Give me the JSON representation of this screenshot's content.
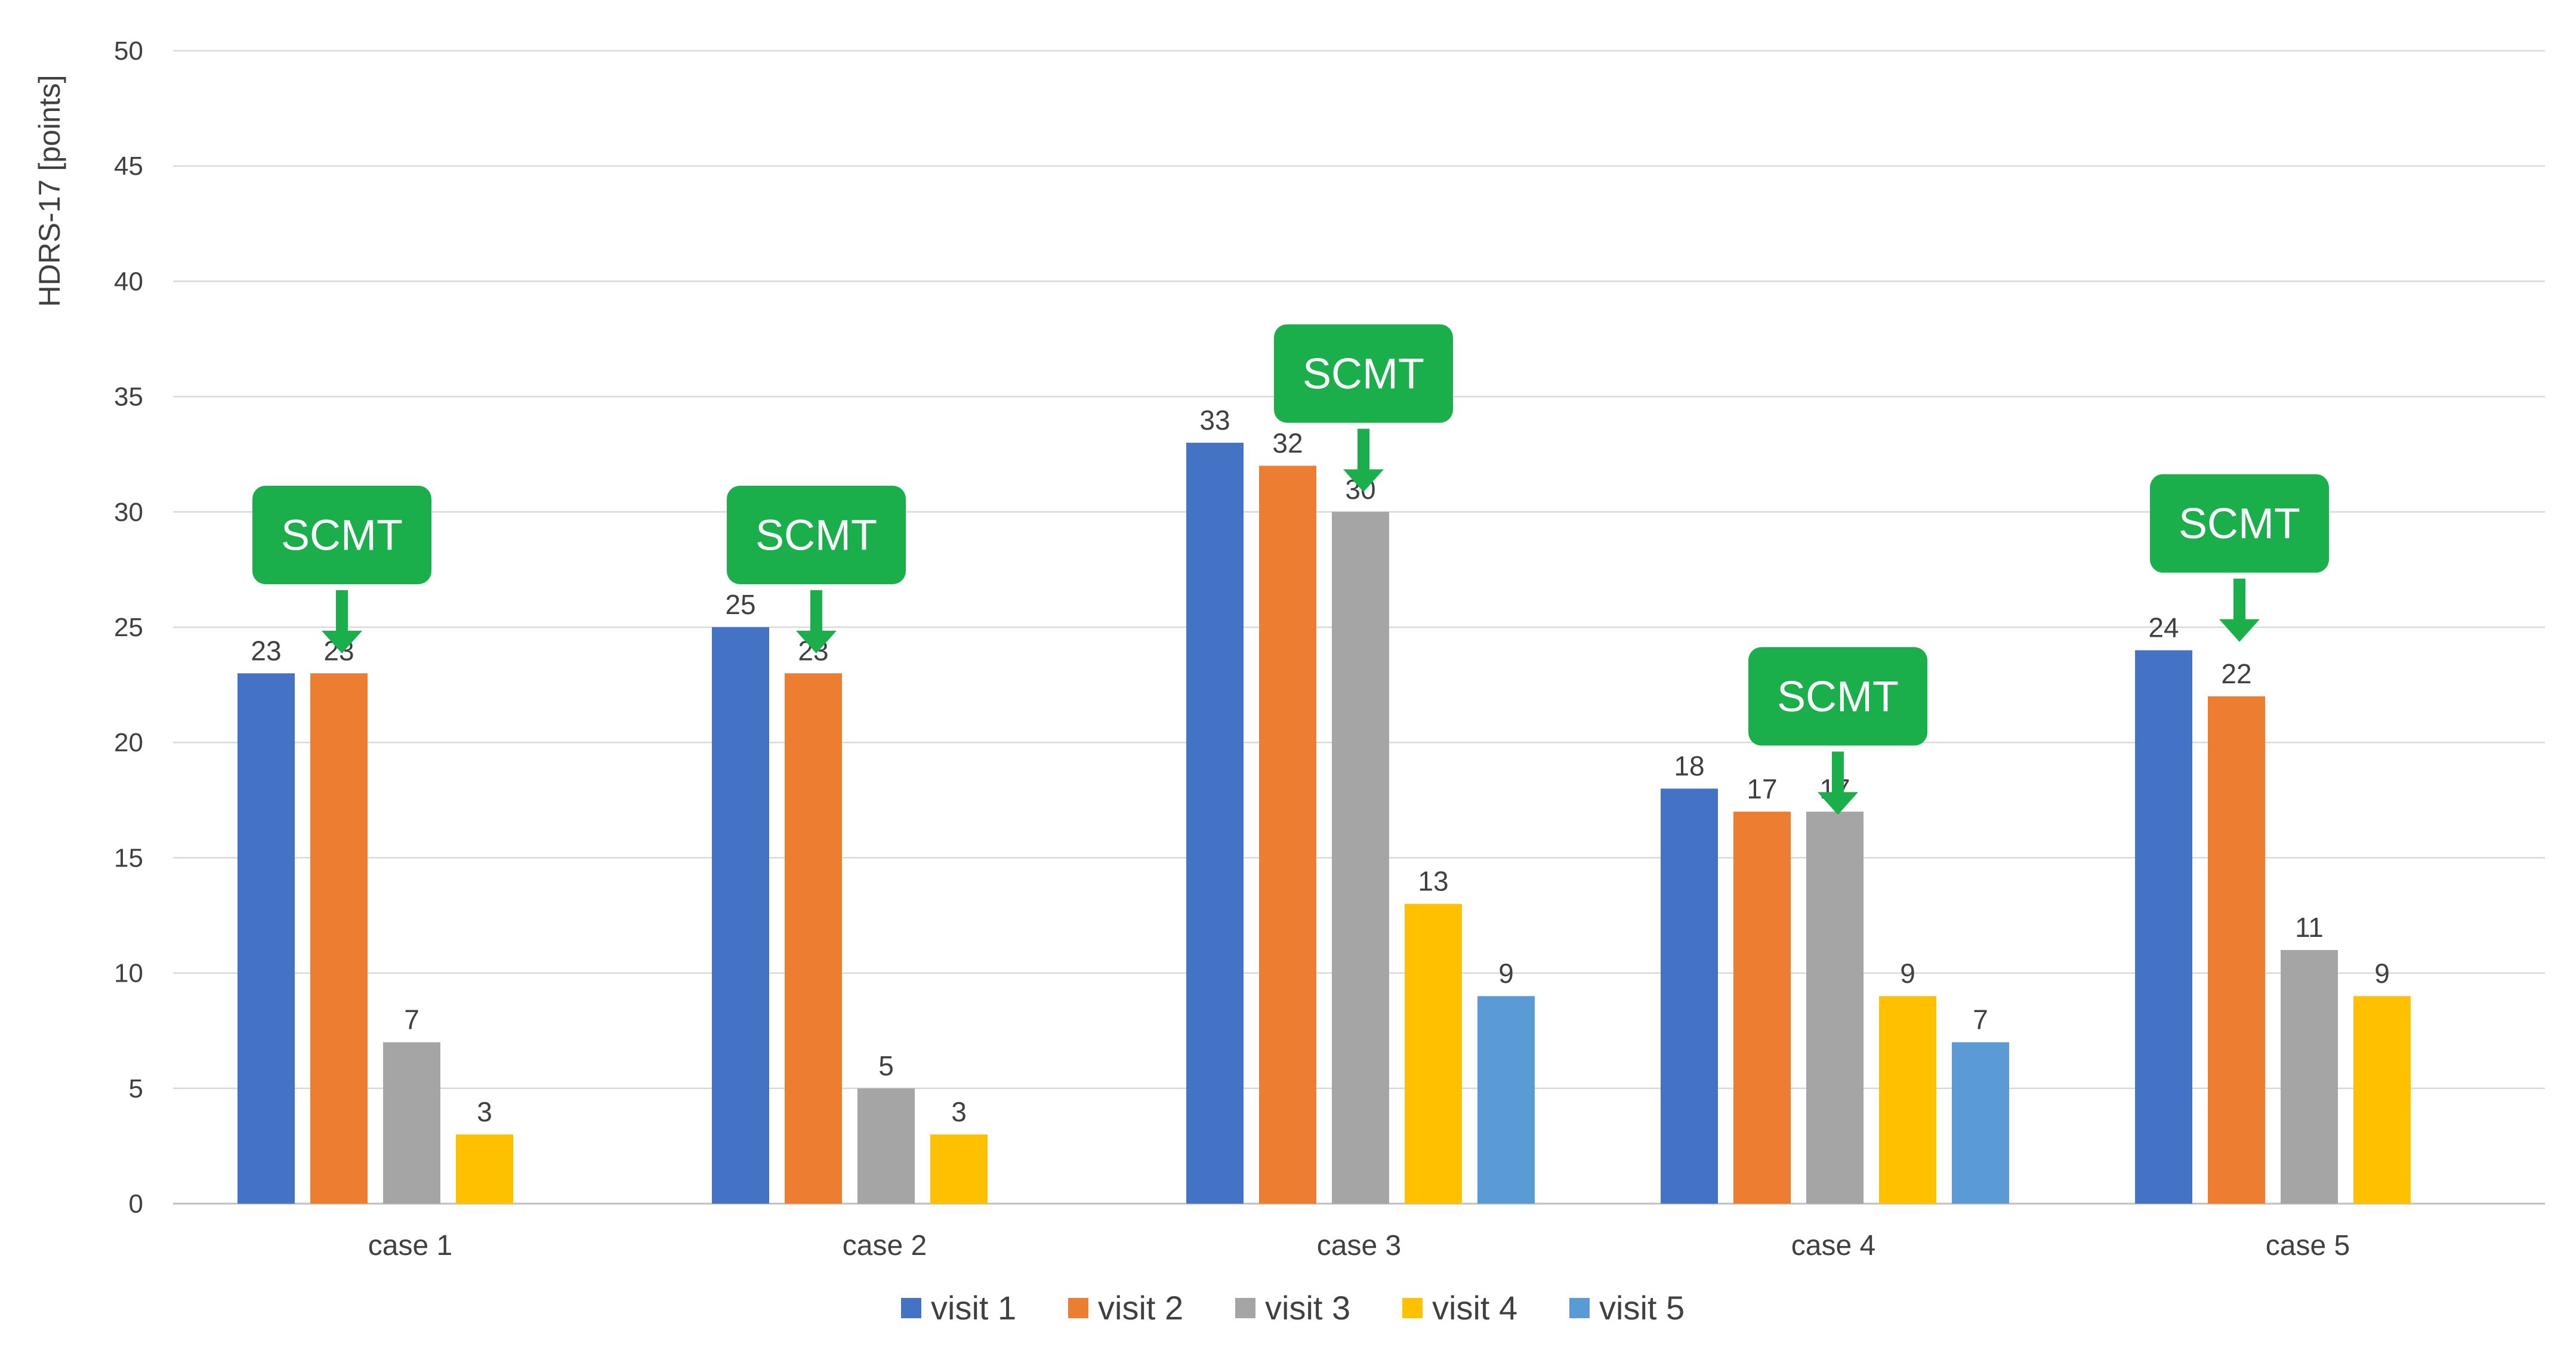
{
  "chart_data": {
    "type": "bar",
    "title": "",
    "xlabel": "",
    "ylabel": "HDRS-17 [points]",
    "ylim": [
      0,
      50
    ],
    "yticks": [
      0,
      5,
      10,
      15,
      20,
      25,
      30,
      35,
      40,
      45,
      50
    ],
    "grid": true,
    "legend_position": "bottom",
    "categories": [
      "case 1",
      "case 2",
      "case 3",
      "case 4",
      "case 5"
    ],
    "series": [
      {
        "name": "visit 1",
        "color": "#4472C4",
        "values": [
          23,
          25,
          33,
          18,
          24
        ]
      },
      {
        "name": "visit 2",
        "color": "#ED7D31",
        "values": [
          23,
          23,
          32,
          17,
          22
        ]
      },
      {
        "name": "visit 3",
        "color": "#A5A5A5",
        "values": [
          7,
          5,
          30,
          17,
          11
        ]
      },
      {
        "name": "visit 4",
        "color": "#FFC000",
        "values": [
          3,
          3,
          13,
          9,
          9
        ]
      },
      {
        "name": "visit 5",
        "color": "#5B9BD5",
        "values": [
          null,
          null,
          9,
          7,
          null
        ]
      }
    ],
    "annotations": [
      {
        "text": "SCMT",
        "category": "case 1",
        "after_series": "visit 2",
        "value": 29,
        "color": "#1AAF4B"
      },
      {
        "text": "SCMT",
        "category": "case 2",
        "after_series": "visit 2",
        "value": 29,
        "color": "#1AAF4B"
      },
      {
        "text": "SCMT",
        "category": "case 3",
        "after_series": "visit 3",
        "value": 36,
        "color": "#1AAF4B"
      },
      {
        "text": "SCMT",
        "category": "case 4",
        "after_series": "visit 3",
        "value": 22,
        "color": "#1AAF4B"
      },
      {
        "text": "SCMT",
        "category": "case 5",
        "after_series": "visit 2",
        "value": 29.5,
        "color": "#1AAF4B"
      }
    ]
  }
}
